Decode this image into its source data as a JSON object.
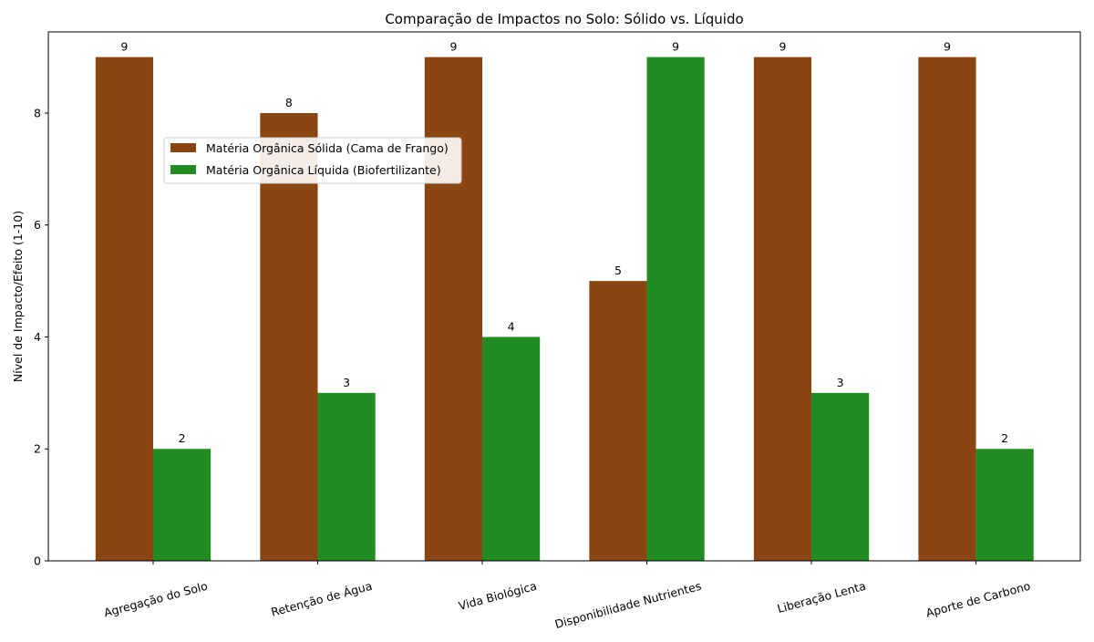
{
  "chart_data": {
    "type": "bar",
    "title": "Comparação de Impactos no Solo: Sólido vs. Líquido",
    "xlabel": "",
    "ylabel": "Nível de Impacto/Efeito (1-10)",
    "ylim": [
      0,
      9.45
    ],
    "yticks": [
      0,
      2,
      4,
      6,
      8
    ],
    "grid": false,
    "legend_position": "top-left",
    "categories": [
      "Agregação do Solo",
      "Retenção de Água",
      "Vida Biológica",
      "Disponibilidade Nutrientes",
      "Liberação Lenta",
      "Aporte de Carbono"
    ],
    "series": [
      {
        "name": "Matéria Orgânica Sólida (Cama de Frango)",
        "color": "#8B4513",
        "values": [
          9,
          8,
          9,
          5,
          9,
          9
        ]
      },
      {
        "name": "Matéria Orgânica Líquida (Biofertilizante)",
        "color": "#228B22",
        "values": [
          2,
          3,
          4,
          9,
          3,
          2
        ]
      }
    ]
  }
}
